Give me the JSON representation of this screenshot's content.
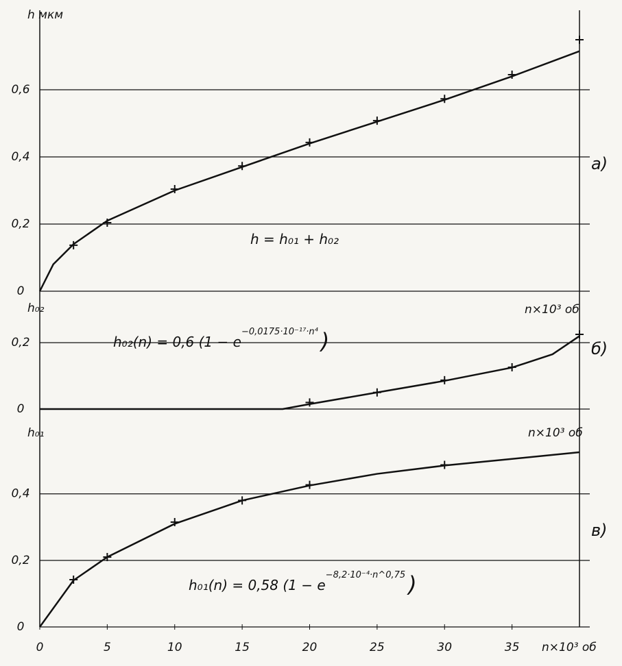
{
  "chart_data": [
    {
      "type": "line",
      "y_label": "h мкм",
      "x_label": "n×10³ об",
      "panel_label": "а)",
      "formula": {
        "main": "h = h₀₁ + h₀₂"
      },
      "xlim": [
        0,
        40
      ],
      "ylim": [
        0,
        0.8
      ],
      "grid": true,
      "yticks": [
        0,
        {
          "value": 0.2,
          "label": "0,2"
        },
        {
          "value": 0.4,
          "label": "0,4"
        },
        {
          "value": 0.6,
          "label": "0,6"
        }
      ],
      "series": [
        {
          "color": "#111",
          "x": [
            0,
            1,
            2.5,
            5,
            10,
            15,
            20,
            25,
            30,
            35,
            40
          ],
          "values": [
            0,
            0.08,
            0.14,
            0.21,
            0.3,
            0.37,
            0.44,
            0.505,
            0.57,
            0.64,
            0.715
          ]
        },
        {
          "color": "#111",
          "marker": "+",
          "x": [
            2.5,
            5,
            10,
            15,
            20,
            25,
            30,
            35,
            40
          ],
          "values": [
            0.137,
            0.204,
            0.304,
            0.373,
            0.443,
            0.508,
            0.573,
            0.645,
            0.749
          ]
        }
      ]
    },
    {
      "type": "line",
      "y_label": "h₀₂",
      "x_label": "n×10³ об",
      "panel_label": "б)",
      "formula": {
        "main": "h₀₂(n) = 0,6 (1 − e",
        "exponent": "−0,0175·10⁻¹⁷·n⁴",
        "close": ")"
      },
      "xlim": [
        0,
        40
      ],
      "ylim": [
        0,
        0.32
      ],
      "grid": true,
      "yticks": [
        0,
        {
          "value": 0.2,
          "label": "0,2"
        }
      ],
      "series": [
        {
          "color": "#111",
          "x": [
            0,
            18,
            20,
            25,
            30,
            35,
            38,
            40
          ],
          "values": [
            0,
            0,
            0.015,
            0.05,
            0.085,
            0.125,
            0.165,
            0.22
          ]
        },
        {
          "color": "#111",
          "marker": "+",
          "x": [
            20,
            25,
            30,
            35,
            40
          ],
          "values": [
            0.02,
            0.05,
            0.087,
            0.126,
            0.225
          ]
        }
      ]
    },
    {
      "type": "line",
      "y_label": "h₀₁",
      "x_label": "n×10³ об",
      "panel_label": "в)",
      "formula": {
        "main": "h₀₁(n) = 0,58 (1 − e",
        "exponent": "−8,2·10⁻⁴·n^0,75",
        "close": ")"
      },
      "xlim": [
        0,
        40
      ],
      "ylim": [
        0,
        0.63
      ],
      "grid": true,
      "xticks": [
        0,
        5,
        10,
        15,
        20,
        25,
        30,
        35
      ],
      "yticks": [
        0,
        {
          "value": 0.2,
          "label": "0,2"
        },
        {
          "value": 0.4,
          "label": "0,4"
        }
      ],
      "series": [
        {
          "color": "#111",
          "x": [
            0,
            2.5,
            5,
            10,
            15,
            20,
            25,
            30,
            35,
            40
          ],
          "values": [
            0,
            0.14,
            0.21,
            0.31,
            0.38,
            0.425,
            0.46,
            0.485,
            0.505,
            0.525
          ]
        },
        {
          "color": "#111",
          "marker": "+",
          "x": [
            2.5,
            5,
            10,
            15,
            20,
            30
          ],
          "values": [
            0.142,
            0.21,
            0.315,
            0.38,
            0.427,
            0.487
          ]
        }
      ]
    }
  ]
}
